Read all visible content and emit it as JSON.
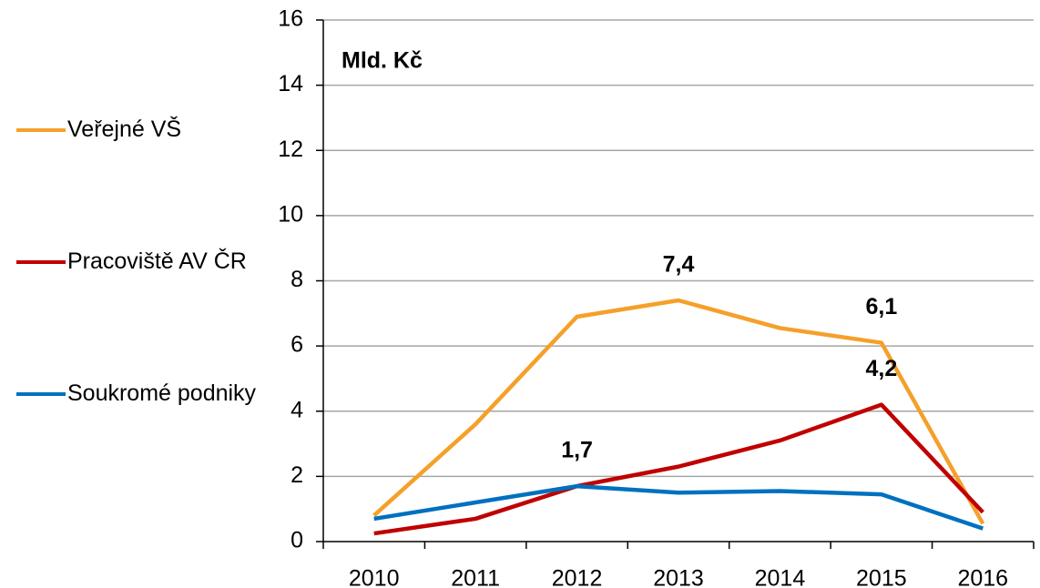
{
  "chart_data": {
    "type": "line",
    "annotation": "Mld. Kč",
    "categories": [
      "2010",
      "2011",
      "2012",
      "2013",
      "2014",
      "2015",
      "2016"
    ],
    "series": [
      {
        "name": "Veřejné VŠ",
        "color": "#f5a02a",
        "values": [
          0.8,
          3.6,
          6.9,
          7.4,
          6.55,
          6.1,
          0.55
        ],
        "value_labels": [
          null,
          null,
          null,
          "7,4",
          null,
          "6,1",
          null
        ]
      },
      {
        "name": "Pracoviště AV ČR",
        "color": "#c00000",
        "values": [
          0.25,
          0.7,
          1.7,
          2.3,
          3.1,
          4.2,
          0.9
        ],
        "value_labels": [
          null,
          null,
          null,
          null,
          null,
          "4,2",
          null
        ]
      },
      {
        "name": "Soukromé podniky",
        "color": "#0070c0",
        "values": [
          0.7,
          1.2,
          1.7,
          1.5,
          1.55,
          1.45,
          0.4
        ],
        "value_labels": [
          null,
          null,
          "1,7",
          null,
          null,
          null,
          null
        ]
      }
    ],
    "ylim": [
      0,
      16
    ],
    "yticks": [
      0,
      2,
      4,
      6,
      8,
      10,
      12,
      14,
      16
    ],
    "grid": true,
    "legend": "left"
  }
}
